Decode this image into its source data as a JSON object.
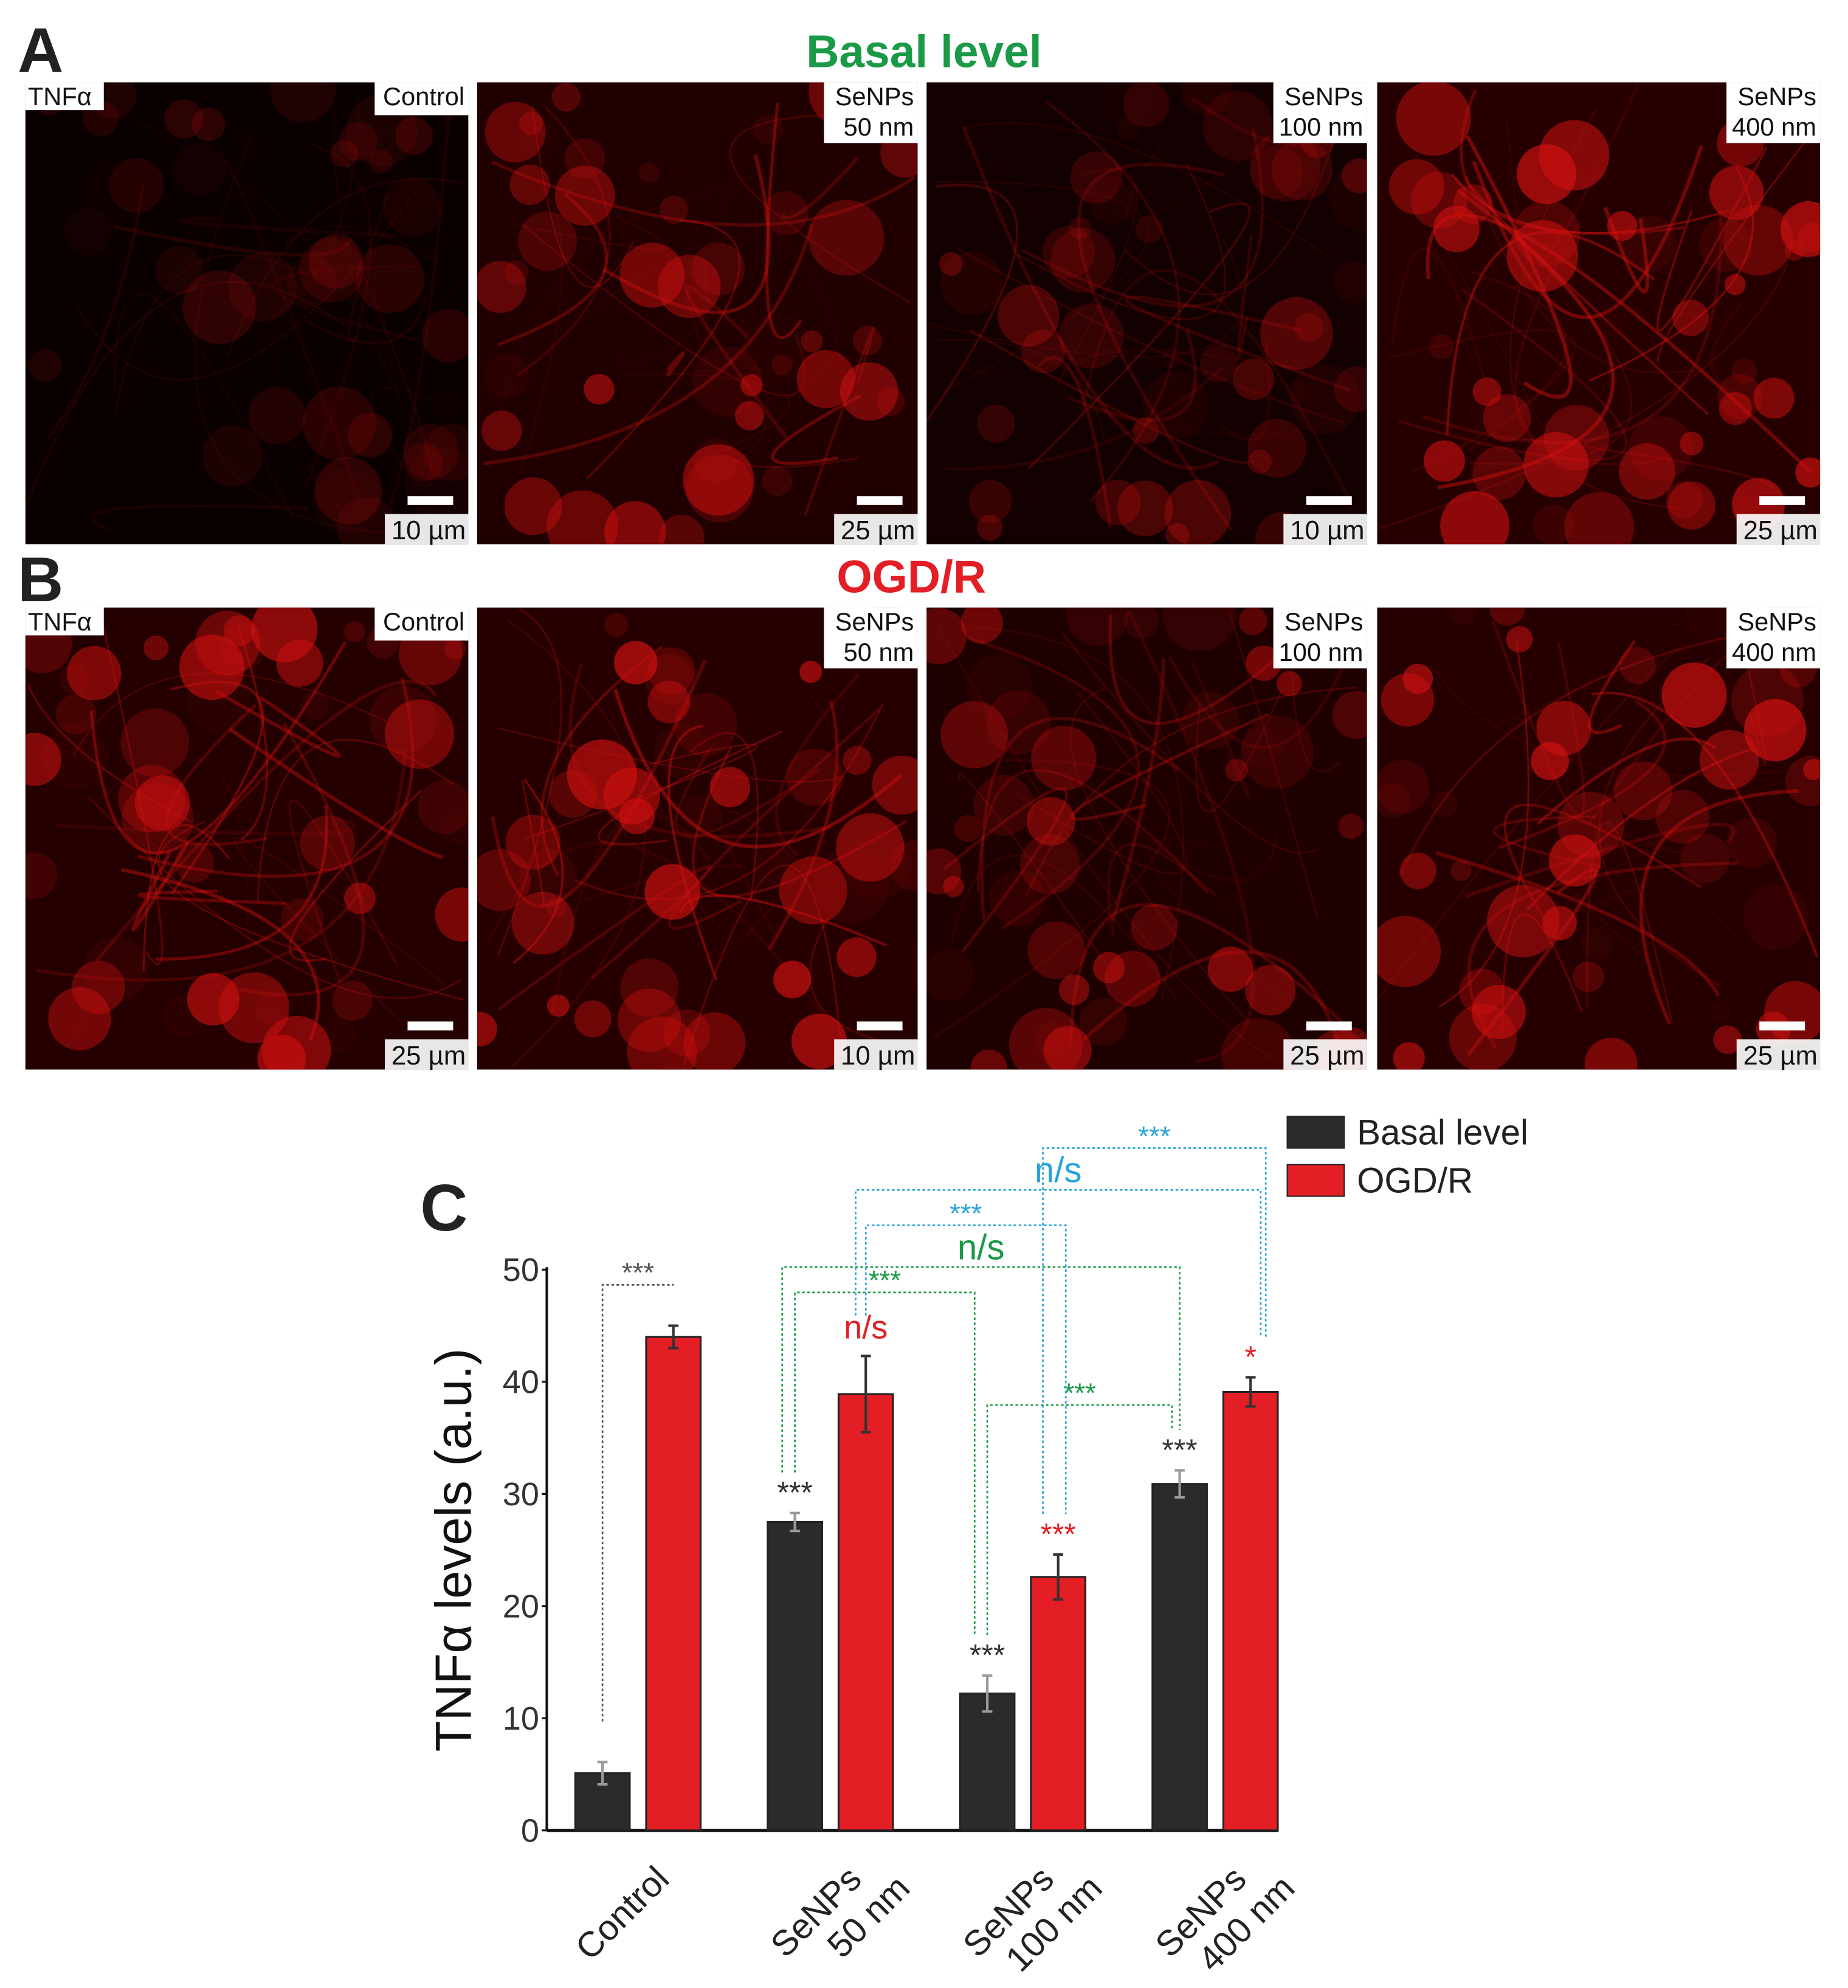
{
  "panels": [
    {
      "letter": "A",
      "title": "Basal level",
      "title_color": "#1a9a46",
      "images": [
        {
          "marker": "TNFα",
          "label": [
            "Control"
          ],
          "scale": "10 µm"
        },
        {
          "label": [
            "SeNPs",
            "50 nm"
          ],
          "scale": "25 µm"
        },
        {
          "label": [
            "SeNPs",
            "100 nm"
          ],
          "scale": "10 µm"
        },
        {
          "label": [
            "SeNPs",
            "400 nm"
          ],
          "scale": "25 µm"
        }
      ]
    },
    {
      "letter": "B",
      "title": "OGD/R",
      "title_color": "#e31e24",
      "images": [
        {
          "marker": "TNFα",
          "label": [
            "Control"
          ],
          "scale": "25 µm"
        },
        {
          "label": [
            "SeNPs",
            "50 nm"
          ],
          "scale": "10 µm"
        },
        {
          "label": [
            "SeNPs",
            "100 nm"
          ],
          "scale": "25 µm"
        },
        {
          "label": [
            "SeNPs",
            "400 nm"
          ],
          "scale": "25 µm"
        }
      ]
    }
  ],
  "chart_data": {
    "type": "bar",
    "panel": "C",
    "ylabel": "TNFα levels (a.u.)",
    "categories": [
      [
        "Control"
      ],
      [
        "SeNPs",
        "50 nm"
      ],
      [
        "SeNPs",
        "100 nm"
      ],
      [
        "SeNPs",
        "400 nm"
      ]
    ],
    "series": [
      {
        "name": "Basal level",
        "color": "#2b2b2b",
        "error_color": "#9a9a9a",
        "significance_color": "#333333",
        "values": [
          5.1,
          27.5,
          12.2,
          30.9
        ],
        "errors": [
          1.0,
          0.8,
          1.6,
          1.2
        ],
        "significance": [
          null,
          "***",
          "***",
          "***"
        ]
      },
      {
        "name": "OGD/R",
        "color": "#e31e24",
        "error_color": "#333333",
        "significance_color": "#e31e24",
        "values": [
          44.0,
          38.9,
          22.6,
          39.1
        ],
        "errors": [
          1.0,
          3.4,
          2.0,
          1.3
        ],
        "significance": [
          null,
          "n/s",
          "***",
          "*"
        ]
      }
    ],
    "comparisons": [
      {
        "from": [
          0,
          0
        ],
        "to": [
          1,
          0
        ],
        "label": "***",
        "color": "#555555"
      },
      {
        "from": [
          0,
          1
        ],
        "to": [
          0,
          2
        ],
        "label": "***",
        "color": "#1a9a46"
      },
      {
        "from": [
          0,
          1
        ],
        "to": [
          0,
          3
        ],
        "label": "n/s",
        "color": "#1a9a46"
      },
      {
        "from": [
          0,
          2
        ],
        "to": [
          0,
          3
        ],
        "label": "***",
        "color": "#1a9a46"
      },
      {
        "from": [
          1,
          1
        ],
        "to": [
          1,
          2
        ],
        "label": "***",
        "color": "#29a3d9"
      },
      {
        "from": [
          1,
          1
        ],
        "to": [
          1,
          3
        ],
        "label": "n/s",
        "color": "#29a3d9"
      },
      {
        "from": [
          1,
          2
        ],
        "to": [
          1,
          3
        ],
        "label": "***",
        "color": "#29a3d9"
      }
    ],
    "ylim": [
      0,
      50
    ],
    "yticks": [
      0,
      10,
      20,
      30,
      40,
      50
    ],
    "legend": "top-right"
  }
}
